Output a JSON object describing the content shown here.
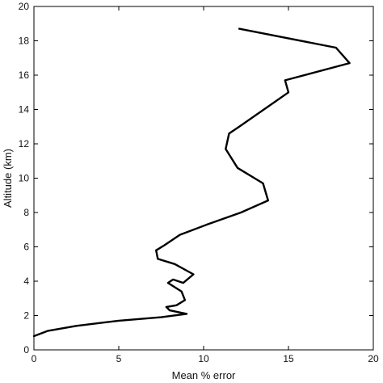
{
  "chart_data": {
    "type": "line",
    "title": "",
    "xlabel": "Mean % error",
    "ylabel": "Altitude (km)",
    "xlim": [
      0,
      20
    ],
    "ylim": [
      0,
      20
    ],
    "xticks": [
      0,
      5,
      10,
      15,
      20
    ],
    "yticks": [
      0,
      2,
      4,
      6,
      8,
      10,
      12,
      14,
      16,
      18,
      20
    ],
    "grid": false,
    "line_color": "#000000",
    "series": [
      {
        "x": [
          0.0,
          0.8,
          2.5,
          5.0,
          7.5,
          9.0,
          8.0,
          7.8,
          8.4,
          8.9,
          8.7,
          7.9,
          8.2,
          8.8,
          9.4,
          8.3,
          7.3,
          7.2,
          7.7,
          8.6,
          10.2,
          12.2,
          13.8,
          13.5,
          12.0,
          11.3,
          11.5,
          12.1,
          15.0,
          14.8,
          18.6,
          17.8,
          12.1
        ],
        "y": [
          0.8,
          1.1,
          1.4,
          1.7,
          1.9,
          2.1,
          2.3,
          2.5,
          2.6,
          2.9,
          3.4,
          3.9,
          4.1,
          3.9,
          4.4,
          5.0,
          5.3,
          5.8,
          6.1,
          6.7,
          7.3,
          8.0,
          8.7,
          9.7,
          10.6,
          11.7,
          12.6,
          13.0,
          15.0,
          15.7,
          16.7,
          17.6,
          18.7
        ]
      }
    ]
  }
}
